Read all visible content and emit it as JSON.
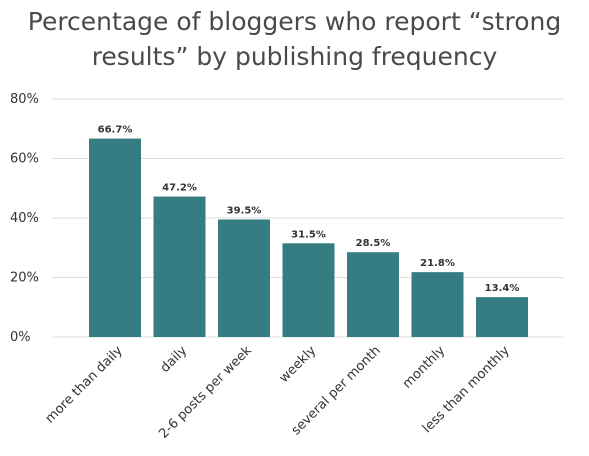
{
  "chart_data": {
    "type": "bar",
    "title_lines": [
      "Percentage of bloggers who report “strong",
      "results” by publishing frequency"
    ],
    "categories": [
      "more than daily",
      "daily",
      "2-6 posts per week",
      "weekly",
      "several per month",
      "monthly",
      "less than monthly"
    ],
    "values": [
      66.7,
      47.2,
      39.5,
      31.5,
      28.5,
      21.8,
      13.4
    ],
    "data_labels": [
      "66.7%",
      "47.2%",
      "39.5%",
      "31.5%",
      "28.5%",
      "21.8%",
      "13.4%"
    ],
    "yticks": [
      {
        "value": 0,
        "label": "0%"
      },
      {
        "value": 20,
        "label": "20%"
      },
      {
        "value": 40,
        "label": "40%"
      },
      {
        "value": 60,
        "label": "60%"
      },
      {
        "value": 80,
        "label": "80%"
      }
    ],
    "ylim": [
      0,
      80
    ],
    "grid": true,
    "legend": "none",
    "colors": {
      "bar": "#367c83",
      "grid": "#dddddd",
      "text": "#333333",
      "title": "#4a4a4a"
    }
  }
}
